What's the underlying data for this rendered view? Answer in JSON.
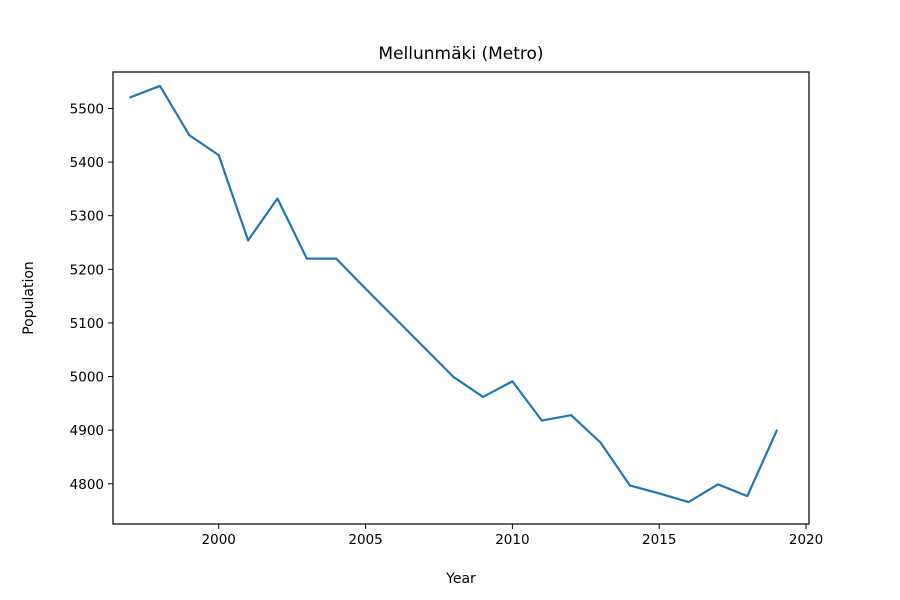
{
  "chart_data": {
    "type": "line",
    "title": "Mellunmäki (Metro)",
    "xlabel": "Year",
    "ylabel": "Population",
    "xlim": [
      1996.4,
      2020.1
    ],
    "ylim": [
      4725,
      5568
    ],
    "xticks": [
      2000,
      2005,
      2010,
      2015,
      2020
    ],
    "yticks": [
      4800,
      4900,
      5000,
      5100,
      5200,
      5300,
      5400,
      5500
    ],
    "grid": false,
    "series": [
      {
        "color": "#1f77b4",
        "x": [
          1997,
          1998,
          1999,
          2000,
          2001,
          2002,
          2003,
          2004,
          2005,
          2006,
          2007,
          2008,
          2009,
          2010,
          2011,
          2012,
          2013,
          2014,
          2015,
          2016,
          2017,
          2018,
          2019
        ],
        "y": [
          5521,
          5542,
          5450,
          5413,
          5254,
          5332,
          5220,
          5220,
          5164,
          5109,
          5054,
          4999,
          4962,
          4991,
          4918,
          4928,
          4877,
          4797,
          4782,
          4766,
          4799,
          4777,
          4899
        ]
      }
    ]
  }
}
